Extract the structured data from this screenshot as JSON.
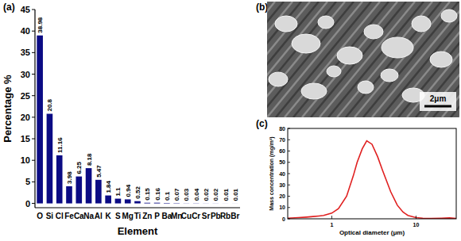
{
  "chart_data": [
    {
      "type": "bar",
      "title": "(a)",
      "xlabel": "Element",
      "ylabel": "Percentage %",
      "categories": [
        "O",
        "Si",
        "Cl",
        "Fe",
        "Ca",
        "Na",
        "Al",
        "K",
        "S",
        "Mg",
        "Ti",
        "Zn",
        "P",
        "Ba",
        "Mn",
        "Cu",
        "Cr",
        "Sr",
        "Pb",
        "Rb",
        "Br"
      ],
      "values": [
        38.98,
        20.8,
        11.16,
        3.98,
        6.25,
        8.18,
        5.47,
        1.84,
        1.1,
        0.94,
        0.52,
        0.15,
        0.16,
        0.1,
        0.07,
        0.03,
        0.04,
        0.02,
        0.02,
        0.01,
        0.01
      ],
      "color": "#0b0b84",
      "data_labels": true,
      "ylim": [
        -1,
        45
      ],
      "yticks": [
        0,
        5,
        10,
        15,
        20,
        25,
        30,
        35,
        40,
        45
      ]
    },
    {
      "type": "line",
      "title": "(c)",
      "xlabel": "Optical diameter (μm)",
      "ylabel": "Mass concentration (mg/m³)",
      "x": [
        0.3,
        0.4,
        0.5,
        0.6,
        0.7,
        0.8,
        1.0,
        1.2,
        1.5,
        1.8,
        2.0,
        2.3,
        2.6,
        3.0,
        3.5,
        4,
        5,
        6,
        7,
        8,
        10,
        12,
        15,
        20,
        25,
        30
      ],
      "values": [
        0.5,
        1,
        1.5,
        2,
        2.5,
        3,
        5,
        9,
        20,
        38,
        50,
        62,
        69,
        66,
        55,
        43,
        24,
        12,
        6,
        3,
        1,
        0.5,
        0.3,
        0.5,
        0.8,
        0.3
      ],
      "color": "#e02020",
      "log": "x",
      "xlim": [
        0.3,
        30
      ],
      "xticks": [
        1,
        10
      ],
      "ylim": [
        0,
        80
      ],
      "yticks": [
        0,
        10,
        20,
        30,
        40,
        50,
        60,
        70,
        80
      ]
    }
  ],
  "image": {
    "title": "(b)",
    "scale_bar": "2μm"
  }
}
